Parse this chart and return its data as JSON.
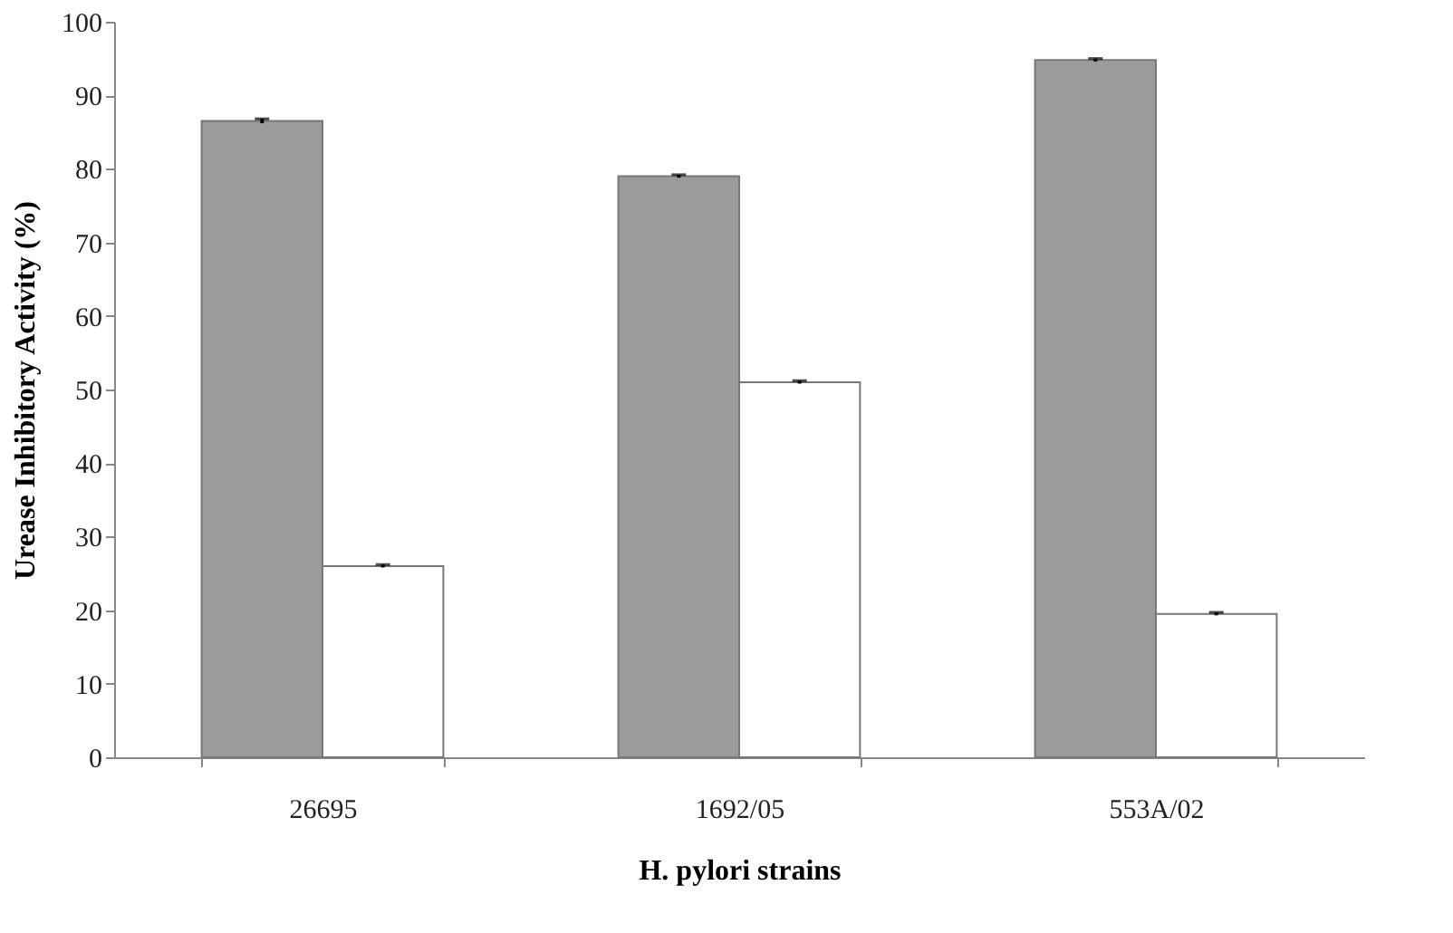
{
  "chart_data": {
    "type": "bar",
    "xlabel": "H. pylori strains",
    "ylabel": "Urease Inhibitory Activity (%)",
    "categories": [
      "26695",
      "1692/05",
      "553A/02"
    ],
    "series": [
      {
        "color": "#9b9b9b",
        "values": [
          86.5,
          79,
          94.8
        ],
        "errors": [
          0.3,
          0.2,
          0.2
        ]
      },
      {
        "color": "#ffffff",
        "values": [
          26,
          51,
          19.5
        ],
        "errors": [
          0.2,
          0.2,
          0.2
        ]
      }
    ],
    "ylim": [
      0,
      100
    ],
    "yticks": [
      0,
      10,
      20,
      30,
      40,
      50,
      60,
      70,
      80,
      90,
      100
    ],
    "grid": false
  }
}
